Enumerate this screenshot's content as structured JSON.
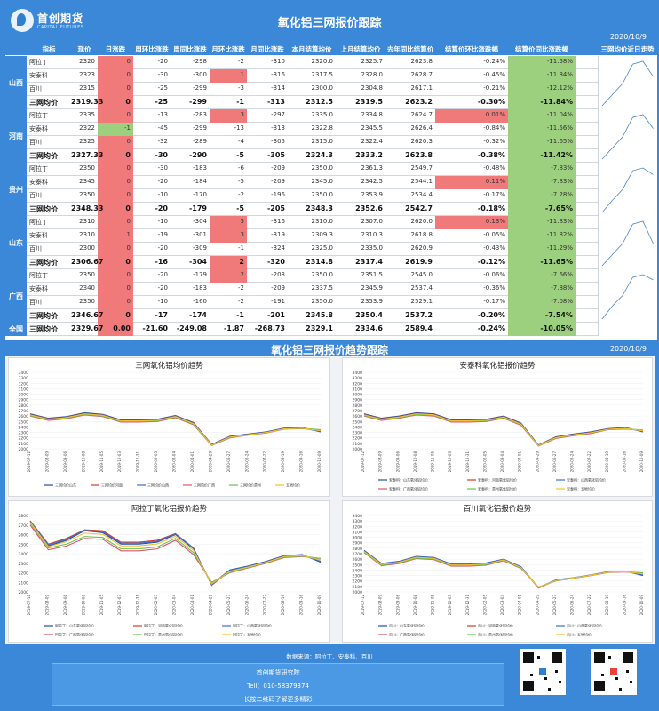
{
  "brand": {
    "name": "首创期货",
    "en": "CAPITAL FUTURES"
  },
  "title": "氧化铝三网报价跟踪",
  "date": "2020/10/9",
  "table": {
    "headers": [
      "指标",
      "现价",
      "日涨跌",
      "周环比涨跌",
      "周同比涨跌",
      "月环比涨跌",
      "月同比涨跌",
      "本月结算均价",
      "上月结算均价",
      "去年同比结算价",
      "结算价环比涨跌幅",
      "结算价同比涨跌幅",
      "三网均价近日走势"
    ],
    "regions": [
      {
        "name": "山西",
        "rows": [
          [
            "阿拉丁",
            "2320",
            "0",
            "-20",
            "-298",
            "-2",
            "-310",
            "2320.0",
            "2325.7",
            "2623.8",
            "-0.24%",
            "-11.58%"
          ],
          [
            "安泰科",
            "2323",
            "0",
            "-30",
            "-300",
            "1",
            "-316",
            "2317.5",
            "2328.0",
            "2628.7",
            "-0.45%",
            "-11.84%"
          ],
          [
            "百川",
            "2315",
            "0",
            "-25",
            "-299",
            "-3",
            "-314",
            "2300.0",
            "2304.8",
            "2617.1",
            "-0.21%",
            "-12.12%"
          ],
          [
            "三网均价",
            "2319.33",
            "0",
            "-25",
            "-299",
            "-1",
            "-313",
            "2312.5",
            "2319.5",
            "2623.2",
            "-0.30%",
            "-11.84%"
          ]
        ]
      },
      {
        "name": "河南",
        "rows": [
          [
            "阿拉丁",
            "2335",
            "0",
            "-13",
            "-283",
            "3",
            "-297",
            "2335.0",
            "2334.8",
            "2624.7",
            "0.01%",
            "-11.04%"
          ],
          [
            "安泰科",
            "2322",
            "-1",
            "-45",
            "-299",
            "-13",
            "-313",
            "2322.8",
            "2345.5",
            "2626.4",
            "-0.84%",
            "-11.56%"
          ],
          [
            "百川",
            "2325",
            "0",
            "-32",
            "-289",
            "-4",
            "-305",
            "2315.0",
            "2322.4",
            "2620.3",
            "-0.32%",
            "-11.65%"
          ],
          [
            "三网均价",
            "2327.33",
            "0",
            "-30",
            "-290",
            "-5",
            "-305",
            "2324.3",
            "2333.2",
            "2623.8",
            "-0.38%",
            "-11.42%"
          ]
        ]
      },
      {
        "name": "贵州",
        "rows": [
          [
            "阿拉丁",
            "2350",
            "0",
            "-30",
            "-183",
            "-6",
            "-209",
            "2350.0",
            "2361.3",
            "2549.7",
            "-0.48%",
            "-7.83%"
          ],
          [
            "安泰科",
            "2345",
            "0",
            "-20",
            "-184",
            "-5",
            "-209",
            "2345.0",
            "2342.5",
            "2544.1",
            "0.11%",
            "-7.83%"
          ],
          [
            "百川",
            "2350",
            "0",
            "-10",
            "-170",
            "-2",
            "-196",
            "2350.0",
            "2353.9",
            "2534.4",
            "-0.17%",
            "-7.28%"
          ],
          [
            "三网均价",
            "2348.33",
            "0",
            "-20",
            "-179",
            "-5",
            "-205",
            "2348.3",
            "2352.6",
            "2542.7",
            "-0.18%",
            "-7.65%"
          ]
        ]
      },
      {
        "name": "山东",
        "rows": [
          [
            "阿拉丁",
            "2310",
            "0",
            "-10",
            "-304",
            "5",
            "-316",
            "2310.0",
            "2307.0",
            "2620.0",
            "0.13%",
            "-11.83%"
          ],
          [
            "安泰科",
            "2310",
            "1",
            "-19",
            "-301",
            "3",
            "-319",
            "2309.3",
            "2310.3",
            "2618.8",
            "-0.05%",
            "-11.82%"
          ],
          [
            "百川",
            "2300",
            "0",
            "-20",
            "-309",
            "-1",
            "-324",
            "2325.0",
            "2335.0",
            "2620.9",
            "-0.43%",
            "-11.29%"
          ],
          [
            "三网均价",
            "2306.67",
            "0",
            "-16",
            "-304",
            "2",
            "-320",
            "2314.8",
            "2317.4",
            "2619.9",
            "-0.12%",
            "-11.65%"
          ]
        ]
      },
      {
        "name": "广西",
        "rows": [
          [
            "阿拉丁",
            "2350",
            "0",
            "-20",
            "-179",
            "2",
            "-203",
            "2350.0",
            "2351.5",
            "2545.0",
            "-0.06%",
            "-7.66%"
          ],
          [
            "安泰科",
            "2340",
            "0",
            "-20",
            "-183",
            "-2",
            "-209",
            "2337.5",
            "2345.9",
            "2537.4",
            "-0.36%",
            "-7.88%"
          ],
          [
            "百川",
            "2350",
            "0",
            "-10",
            "-160",
            "-2",
            "-191",
            "2350.0",
            "2353.9",
            "2529.1",
            "-0.17%",
            "-7.08%"
          ],
          [
            "三网均价",
            "2346.67",
            "0",
            "-17",
            "-174",
            "-1",
            "-201",
            "2345.8",
            "2350.4",
            "2537.2",
            "-0.20%",
            "-7.54%"
          ]
        ]
      },
      {
        "name": "全国",
        "rows": [
          [
            "三网均价",
            "2329.67",
            "0.00",
            "-21.60",
            "-249.08",
            "-1.87",
            "-268.73",
            "2329.1",
            "2334.6",
            "2589.4",
            "-0.24%",
            "-10.05%"
          ]
        ]
      }
    ]
  },
  "section2_title": "氧化铝三网报价趋势跟踪",
  "colors": {
    "red": "#f07a7a",
    "green": "#9cd07e",
    "blue": "#3b88d8"
  },
  "chart_data": [
    {
      "type": "line",
      "title": "三网氧化铝均价趋势",
      "ylim": [
        2000,
        3400
      ],
      "yticks": [
        2000,
        2100,
        2200,
        2300,
        2400,
        2500,
        2600,
        2700,
        2800,
        2900,
        3000,
        3100,
        3200,
        3300,
        3400
      ],
      "x": [
        "2019-07-12",
        "2019-08-09",
        "2019-09-06",
        "2019-10-08",
        "2019-11-05",
        "2019-12-03",
        "2019-12-31",
        "2020-02-05",
        "2020-03-04",
        "2020-04-01",
        "2020-04-29",
        "2020-05-27",
        "2020-06-24",
        "2020-07-22",
        "2020-08-19",
        "2020-09-16",
        "2020-10-09"
      ],
      "series": [
        {
          "name": "三网均价山东",
          "color": "#1f4fa8",
          "values": [
            2640,
            2560,
            2590,
            2660,
            2630,
            2530,
            2530,
            2540,
            2610,
            2480,
            2080,
            2230,
            2270,
            2310,
            2380,
            2390,
            2310
          ]
        },
        {
          "name": "三网均价河南",
          "color": "#d43a2a",
          "values": [
            2630,
            2550,
            2580,
            2650,
            2620,
            2520,
            2520,
            2530,
            2600,
            2470,
            2070,
            2220,
            2260,
            2300,
            2370,
            2380,
            2330
          ]
        },
        {
          "name": "三网均价山西",
          "color": "#3c6fd0",
          "values": [
            2625,
            2545,
            2575,
            2645,
            2615,
            2515,
            2515,
            2525,
            2595,
            2465,
            2065,
            2215,
            2255,
            2295,
            2365,
            2375,
            2320
          ]
        },
        {
          "name": "三网均价广西",
          "color": "#e0506b",
          "values": [
            2600,
            2520,
            2550,
            2620,
            2590,
            2490,
            2490,
            2500,
            2570,
            2440,
            2060,
            2200,
            2250,
            2290,
            2360,
            2370,
            2350
          ]
        },
        {
          "name": "三网均价贵州",
          "color": "#6fc14e",
          "values": [
            2610,
            2530,
            2560,
            2630,
            2600,
            2500,
            2500,
            2510,
            2580,
            2450,
            2065,
            2210,
            2255,
            2295,
            2365,
            2375,
            2350
          ]
        },
        {
          "name": "五地均价",
          "color": "#f2c12e",
          "values": [
            2621,
            2541,
            2571,
            2641,
            2611,
            2511,
            2511,
            2521,
            2591,
            2461,
            2068,
            2215,
            2258,
            2298,
            2368,
            2378,
            2330
          ]
        }
      ]
    },
    {
      "type": "line",
      "title": "安泰科氧化铝报价趋势",
      "ylim": [
        2000,
        3400
      ],
      "yticks": [
        2000,
        2100,
        2200,
        2300,
        2400,
        2500,
        2600,
        2700,
        2800,
        2900,
        3000,
        3100,
        3200,
        3300,
        3400
      ],
      "x": [
        "2019-07-12",
        "2019-08-09",
        "2019-09-06",
        "2019-10-08",
        "2019-11-05",
        "2019-12-03",
        "2019-12-31",
        "2020-02-05",
        "2020-03-04",
        "2020-04-01",
        "2020-04-29",
        "2020-05-27",
        "2020-06-24",
        "2020-07-22",
        "2020-08-19",
        "2020-09-16",
        "2020-10-09"
      ],
      "series": [
        {
          "name": "安泰科：山东氧化铝均价",
          "color": "#1f4fa8",
          "values": [
            2640,
            2560,
            2600,
            2660,
            2640,
            2530,
            2530,
            2540,
            2600,
            2470,
            2070,
            2220,
            2270,
            2310,
            2370,
            2390,
            2310
          ]
        },
        {
          "name": "安泰科：河南氧化铝均价",
          "color": "#d43a2a",
          "values": [
            2630,
            2550,
            2590,
            2650,
            2630,
            2520,
            2520,
            2530,
            2590,
            2460,
            2060,
            2210,
            2260,
            2300,
            2360,
            2380,
            2322
          ]
        },
        {
          "name": "安泰科：山西氧化铝均价",
          "color": "#3c6fd0",
          "values": [
            2625,
            2545,
            2585,
            2645,
            2625,
            2515,
            2515,
            2525,
            2585,
            2455,
            2055,
            2205,
            2255,
            2295,
            2355,
            2375,
            2323
          ]
        },
        {
          "name": "安泰科：广西氧化铝均价",
          "color": "#e0506b",
          "values": [
            2600,
            2520,
            2560,
            2620,
            2600,
            2490,
            2490,
            2500,
            2560,
            2430,
            2050,
            2190,
            2240,
            2280,
            2350,
            2360,
            2340
          ]
        },
        {
          "name": "安泰科：贵州氧化铝均价",
          "color": "#6fc14e",
          "values": [
            2610,
            2530,
            2570,
            2630,
            2610,
            2500,
            2500,
            2510,
            2570,
            2440,
            2055,
            2200,
            2250,
            2290,
            2355,
            2365,
            2345
          ]
        },
        {
          "name": "安泰科：五地均价",
          "color": "#f2c12e",
          "values": [
            2621,
            2541,
            2581,
            2641,
            2621,
            2511,
            2511,
            2521,
            2581,
            2451,
            2058,
            2205,
            2255,
            2295,
            2358,
            2374,
            2328
          ]
        }
      ]
    },
    {
      "type": "line",
      "title": "阿拉丁氧化铝报价趋势",
      "ylim": [
        2000,
        2800
      ],
      "yticks": [
        2000,
        2100,
        2200,
        2300,
        2400,
        2500,
        2600,
        2700,
        2800
      ],
      "x": [
        "2019-07-12",
        "2019-08-09",
        "2019-09-06",
        "2019-10-08",
        "2019-11-05",
        "2019-12-03",
        "2019-12-31",
        "2020-02-05",
        "2020-03-04",
        "2020-04-01",
        "2020-04-29",
        "2020-05-27",
        "2020-06-24",
        "2020-07-22",
        "2020-08-19",
        "2020-09-16",
        "2020-10-09"
      ],
      "series": [
        {
          "name": "阿拉丁：山东氧化铝均价",
          "color": "#1f4fa8",
          "values": [
            2740,
            2480,
            2540,
            2640,
            2620,
            2500,
            2500,
            2520,
            2600,
            2450,
            2080,
            2230,
            2270,
            2320,
            2380,
            2390,
            2310
          ]
        },
        {
          "name": "阿拉丁：河南氧化铝均价",
          "color": "#d43a2a",
          "values": [
            2745,
            2500,
            2560,
            2650,
            2640,
            2520,
            2520,
            2540,
            2610,
            2460,
            2070,
            2220,
            2260,
            2310,
            2370,
            2380,
            2335
          ]
        },
        {
          "name": "阿拉丁：山西氧化铝均价",
          "color": "#3c6fd0",
          "values": [
            2740,
            2490,
            2550,
            2645,
            2630,
            2510,
            2510,
            2530,
            2605,
            2455,
            2075,
            2225,
            2265,
            2315,
            2375,
            2385,
            2320
          ]
        },
        {
          "name": "阿拉丁：广西氧化铝均价",
          "color": "#e0506b",
          "values": [
            2700,
            2440,
            2480,
            2560,
            2550,
            2430,
            2430,
            2450,
            2540,
            2390,
            2100,
            2200,
            2250,
            2300,
            2360,
            2370,
            2350
          ]
        },
        {
          "name": "阿拉丁：贵州氧化铝均价",
          "color": "#6fc14e",
          "values": [
            2720,
            2460,
            2500,
            2580,
            2570,
            2450,
            2450,
            2470,
            2560,
            2410,
            2095,
            2205,
            2255,
            2305,
            2365,
            2375,
            2350
          ]
        },
        {
          "name": "阿拉丁：五地均价",
          "color": "#f2c12e",
          "values": [
            2729,
            2474,
            2526,
            2615,
            2602,
            2482,
            2482,
            2502,
            2583,
            2433,
            2084,
            2216,
            2260,
            2310,
            2370,
            2380,
            2333
          ]
        }
      ]
    },
    {
      "type": "line",
      "title": "百川氧化铝报价趋势",
      "ylim": [
        2000,
        3400
      ],
      "yticks": [
        2000,
        2100,
        2200,
        2300,
        2400,
        2500,
        2600,
        2700,
        2800,
        2900,
        3000,
        3100,
        3200,
        3300,
        3400
      ],
      "x": [
        "2019-07-12",
        "2019-08-09",
        "2019-09-06",
        "2019-10-08",
        "2019-11-05",
        "2019-12-03",
        "2019-12-31",
        "2020-02-05",
        "2020-03-04",
        "2020-04-01",
        "2020-04-29",
        "2020-05-27",
        "2020-06-24",
        "2020-07-22",
        "2020-08-19",
        "2020-09-16",
        "2020-10-09"
      ],
      "series": [
        {
          "name": "百川：山东氧化铝均价",
          "color": "#1f4fa8",
          "values": [
            2760,
            2520,
            2560,
            2650,
            2630,
            2510,
            2510,
            2530,
            2600,
            2460,
            2080,
            2220,
            2260,
            2310,
            2370,
            2380,
            2300
          ]
        },
        {
          "name": "百川：河南氧化铝均价",
          "color": "#d43a2a",
          "values": [
            2740,
            2510,
            2550,
            2640,
            2620,
            2500,
            2500,
            2520,
            2590,
            2450,
            2070,
            2210,
            2250,
            2300,
            2360,
            2370,
            2325
          ]
        },
        {
          "name": "百川：山西氧化铝均价",
          "color": "#3c6fd0",
          "values": [
            2750,
            2515,
            2555,
            2645,
            2625,
            2505,
            2505,
            2525,
            2595,
            2455,
            2075,
            2215,
            2255,
            2305,
            2365,
            2375,
            2315
          ]
        },
        {
          "name": "百川：广西氧化铝均价",
          "color": "#e0506b",
          "values": [
            2720,
            2480,
            2520,
            2610,
            2590,
            2470,
            2470,
            2490,
            2570,
            2430,
            2090,
            2200,
            2250,
            2300,
            2355,
            2365,
            2350
          ]
        },
        {
          "name": "百川：贵州氧化铝均价",
          "color": "#6fc14e",
          "values": [
            2730,
            2490,
            2530,
            2620,
            2600,
            2480,
            2480,
            2500,
            2580,
            2440,
            2085,
            2205,
            2255,
            2305,
            2360,
            2370,
            2350
          ]
        },
        {
          "name": "百川：五地均价",
          "color": "#f2c12e",
          "values": [
            2740,
            2503,
            2543,
            2633,
            2613,
            2493,
            2493,
            2513,
            2587,
            2447,
            2080,
            2210,
            2254,
            2304,
            2362,
            2372,
            2328
          ]
        }
      ]
    }
  ],
  "footer": {
    "source": "数据来源：阿拉丁、安泰科、百川",
    "org": "首创期货研究院",
    "tel": "Tell：010-58379374",
    "slogan": "长按二维码了解更多精彩"
  }
}
